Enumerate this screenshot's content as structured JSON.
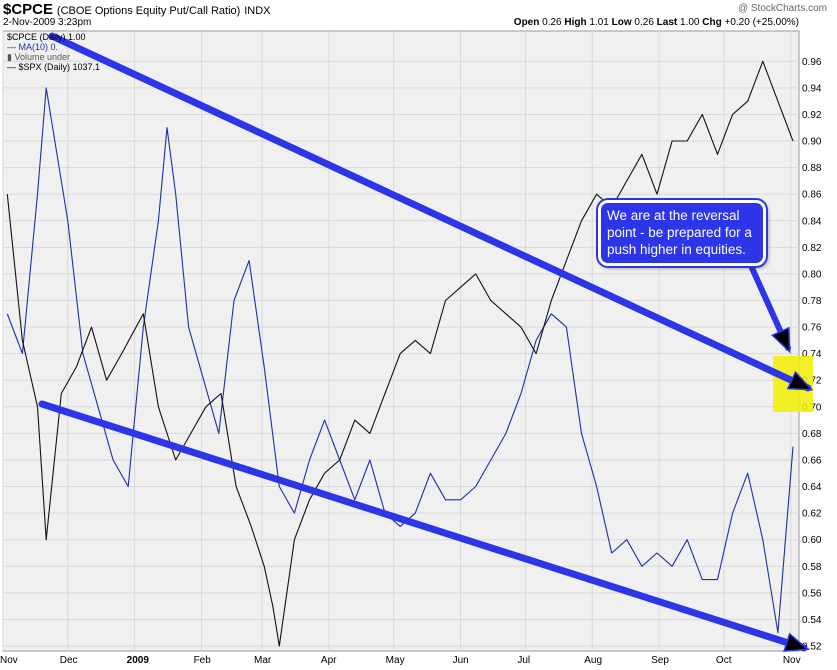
{
  "header": {
    "symbol": "$CPCE",
    "description": "(CBOE Options Equity Put/Call Ratio)",
    "exchange": "INDX",
    "date": "2-Nov-2009 3:23pm",
    "brand": "@ StockCharts.com",
    "open_label": "Open",
    "open_value": "0.26",
    "high_label": "High",
    "high_value": "1.01",
    "low_label": "Low",
    "low_value": "0.26",
    "last_label": "Last",
    "last_value": "1.00",
    "chg_label": "Chg",
    "chg_value": "+0.20 (+25.00%)",
    "chg_arrow": "up-arrow"
  },
  "legend": {
    "line1": "$CPCE (Daily) 1.00",
    "line2": "MA(10) 0.",
    "line3": "Volume under",
    "line4": "$SPX (Daily) 1037.1"
  },
  "callout": {
    "text": "We are at the reversal point - be prepared for a push higher in equities."
  },
  "colors": {
    "ma_line": "#1c2fa8",
    "spx_line": "#111111",
    "annotation": "#2c35e8",
    "highlight": "#f2ef00",
    "plot_bg": "#f0f0f0",
    "grid": "#d9d9d9"
  },
  "chart_data": {
    "type": "line",
    "ylim": [
      0.52,
      0.97
    ],
    "y_ticks": [
      "0.96",
      "0.94",
      "0.92",
      "0.90",
      "0.88",
      "0.86",
      "0.84",
      "0.82",
      "0.80",
      "0.78",
      "0.76",
      "0.74",
      "0.72",
      "0.70",
      "0.68",
      "0.66",
      "0.64",
      "0.62",
      "0.60",
      "0.58",
      "0.56",
      "0.54",
      "0.52"
    ],
    "x_ticks": [
      "Nov",
      "Dec",
      "2009",
      "Feb",
      "Mar",
      "Apr",
      "May",
      "Jun",
      "Jul",
      "Aug",
      "Sep",
      "Oct",
      "Nov"
    ],
    "x_range": [
      "2008-11-01",
      "2009-11-02"
    ],
    "grid": true,
    "series": [
      {
        "name": "MA(10)",
        "x": [
          "2008-11-03",
          "2008-11-10",
          "2008-11-17",
          "2008-11-21",
          "2008-12-01",
          "2008-12-08",
          "2008-12-15",
          "2008-12-22",
          "2008-12-29",
          "2009-01-05",
          "2009-01-12",
          "2009-01-16",
          "2009-01-20",
          "2009-01-26",
          "2009-02-02",
          "2009-02-09",
          "2009-02-16",
          "2009-02-23",
          "2009-03-02",
          "2009-03-09",
          "2009-03-16",
          "2009-03-23",
          "2009-03-30",
          "2009-04-06",
          "2009-04-13",
          "2009-04-20",
          "2009-04-27",
          "2009-05-04",
          "2009-05-11",
          "2009-05-18",
          "2009-05-25",
          "2009-06-01",
          "2009-06-08",
          "2009-06-15",
          "2009-06-22",
          "2009-06-29",
          "2009-07-06",
          "2009-07-13",
          "2009-07-20",
          "2009-07-27",
          "2009-08-03",
          "2009-08-10",
          "2009-08-17",
          "2009-08-24",
          "2009-08-31",
          "2009-09-07",
          "2009-09-14",
          "2009-09-21",
          "2009-09-28",
          "2009-10-05",
          "2009-10-12",
          "2009-10-19",
          "2009-10-26",
          "2009-11-02"
        ],
        "values": [
          0.77,
          0.74,
          0.86,
          0.94,
          0.84,
          0.74,
          0.7,
          0.66,
          0.64,
          0.76,
          0.84,
          0.91,
          0.86,
          0.76,
          0.72,
          0.68,
          0.78,
          0.81,
          0.73,
          0.64,
          0.62,
          0.66,
          0.69,
          0.66,
          0.63,
          0.66,
          0.62,
          0.61,
          0.62,
          0.65,
          0.63,
          0.63,
          0.64,
          0.66,
          0.68,
          0.71,
          0.75,
          0.77,
          0.76,
          0.68,
          0.64,
          0.59,
          0.6,
          0.58,
          0.59,
          0.58,
          0.6,
          0.57,
          0.57,
          0.62,
          0.65,
          0.6,
          0.53,
          0.67
        ]
      },
      {
        "name": "$SPX",
        "x": [
          "2008-11-03",
          "2008-11-10",
          "2008-11-17",
          "2008-11-21",
          "2008-11-28",
          "2008-12-05",
          "2008-12-12",
          "2008-12-19",
          "2008-12-26",
          "2009-01-05",
          "2009-01-12",
          "2009-01-20",
          "2009-01-27",
          "2009-02-03",
          "2009-02-10",
          "2009-02-17",
          "2009-02-24",
          "2009-03-02",
          "2009-03-06",
          "2009-03-09",
          "2009-03-16",
          "2009-03-23",
          "2009-03-30",
          "2009-04-06",
          "2009-04-13",
          "2009-04-20",
          "2009-04-27",
          "2009-05-04",
          "2009-05-11",
          "2009-05-18",
          "2009-05-25",
          "2009-06-01",
          "2009-06-08",
          "2009-06-15",
          "2009-06-22",
          "2009-06-29",
          "2009-07-06",
          "2009-07-13",
          "2009-07-20",
          "2009-07-27",
          "2009-08-03",
          "2009-08-10",
          "2009-08-17",
          "2009-08-24",
          "2009-08-31",
          "2009-09-07",
          "2009-09-14",
          "2009-09-21",
          "2009-09-28",
          "2009-10-05",
          "2009-10-12",
          "2009-10-19",
          "2009-10-26",
          "2009-11-02"
        ],
        "values": [
          0.86,
          0.75,
          0.7,
          0.6,
          0.71,
          0.73,
          0.76,
          0.72,
          0.74,
          0.77,
          0.7,
          0.66,
          0.68,
          0.7,
          0.71,
          0.64,
          0.61,
          0.58,
          0.55,
          0.52,
          0.6,
          0.63,
          0.65,
          0.66,
          0.69,
          0.68,
          0.71,
          0.74,
          0.75,
          0.74,
          0.78,
          0.79,
          0.8,
          0.78,
          0.77,
          0.76,
          0.74,
          0.78,
          0.81,
          0.84,
          0.86,
          0.85,
          0.87,
          0.89,
          0.86,
          0.9,
          0.9,
          0.92,
          0.89,
          0.92,
          0.93,
          0.96,
          0.93,
          0.9
        ]
      }
    ],
    "annotations": [
      {
        "type": "arrow",
        "name": "upper-trend-arrow"
      },
      {
        "type": "arrow",
        "name": "lower-trend-arrow"
      },
      {
        "type": "arrow",
        "name": "callout-pointer"
      },
      {
        "type": "highlight",
        "name": "reversal-highlight"
      }
    ]
  }
}
